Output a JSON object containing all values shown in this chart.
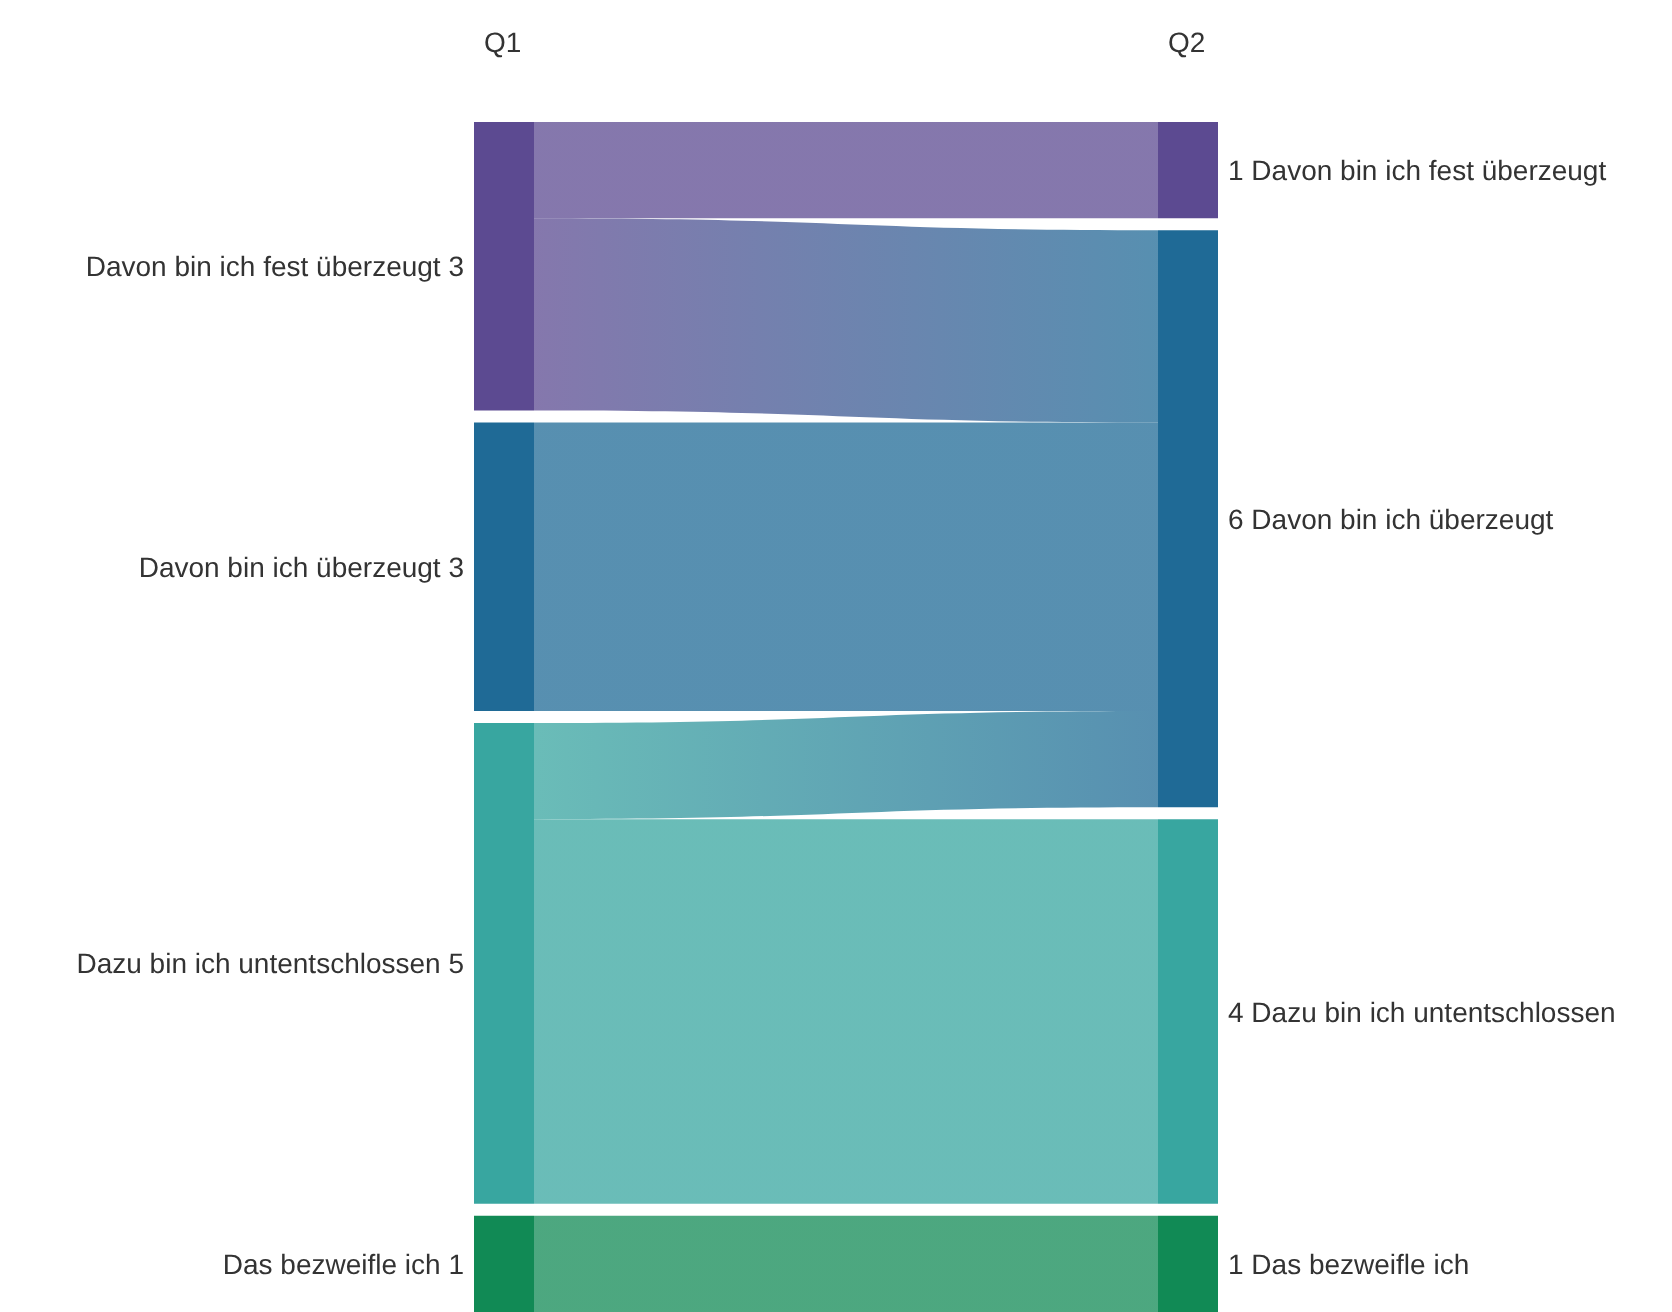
{
  "chart_data": {
    "type": "other",
    "categories": [
      "Davon bin ich fest überzeugt",
      "Davon bin ich überzeugt",
      "Dazu bin ich untentschlossen",
      "Das bezweifle ich"
    ],
    "colors": [
      "#5c4a91",
      "#1f6a96",
      "#38a6a0",
      "#118a55"
    ],
    "series": [
      {
        "name": "Q1",
        "values": [
          3,
          3,
          5,
          1
        ],
        "value_labels": [
          "3",
          "3",
          "5",
          "1"
        ]
      },
      {
        "name": "Q2",
        "values": [
          1,
          6,
          4,
          1
        ],
        "value_labels": [
          "1",
          "6",
          "4",
          "1"
        ]
      }
    ]
  }
}
